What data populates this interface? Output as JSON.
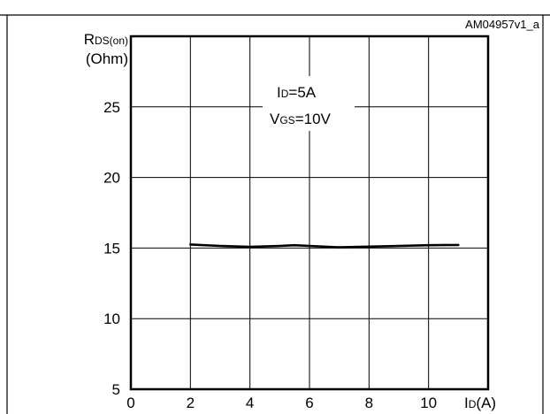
{
  "chart_data": {
    "type": "line",
    "figure_id": "AM04957v1_a",
    "title": "",
    "ylabel": {
      "main": "R",
      "sub": "DS(on)",
      "unit": "(Ohm)"
    },
    "xlabel": {
      "main": "I",
      "sub": "D",
      "unit": "(A)"
    },
    "xlim": [
      0,
      12
    ],
    "ylim": [
      5,
      30
    ],
    "x_ticks": [
      0,
      2,
      4,
      6,
      8,
      10
    ],
    "y_ticks": [
      5,
      10,
      15,
      20,
      25
    ],
    "grid": true,
    "annotations": [
      {
        "main": "I",
        "sub": "D",
        "value": "=5A"
      },
      {
        "main": "V",
        "sub": "GS",
        "value": "=10V"
      }
    ],
    "series": [
      {
        "x": [
          2,
          3,
          4,
          5,
          5.5,
          6,
          7,
          8,
          9,
          10,
          11
        ],
        "y": [
          15.25,
          15.15,
          15.08,
          15.15,
          15.2,
          15.15,
          15.05,
          15.1,
          15.15,
          15.2,
          15.22
        ]
      }
    ]
  }
}
